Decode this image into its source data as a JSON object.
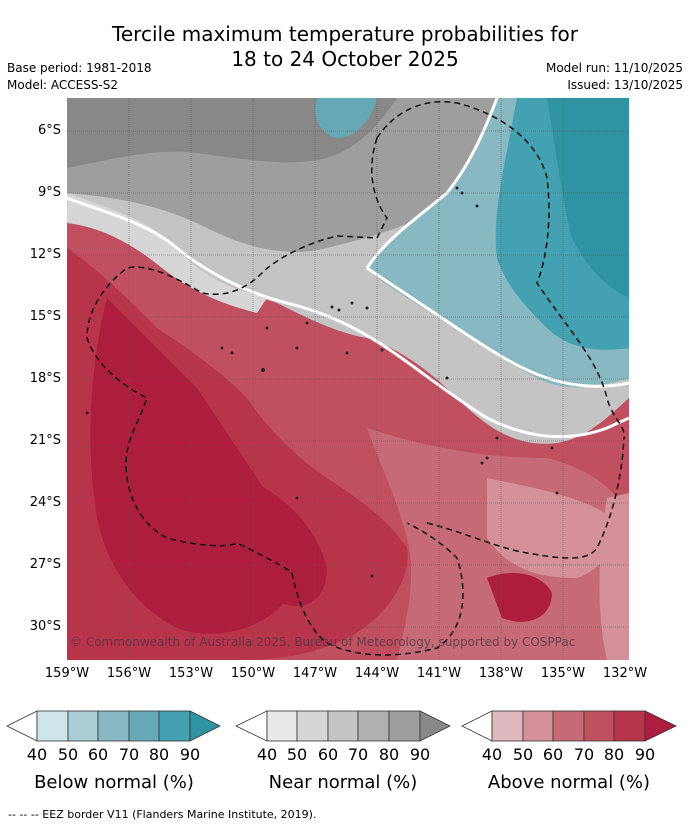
{
  "title": {
    "line1": "Tercile maximum temperature probabilities for",
    "line2": "18 to 24 October 2025"
  },
  "meta": {
    "base_period": "Base period: 1981-2018",
    "model": "Model: ACCESS-S2",
    "model_run": "Model run: 11/10/2025",
    "issued": "Issued: 13/10/2025"
  },
  "map": {
    "copyright": "© Commonwealth of Australia 2025, Bureau of Meteorology, supported by COSPPac",
    "lat_labels": [
      "6°S",
      "9°S",
      "12°S",
      "15°S",
      "18°S",
      "21°S",
      "24°S",
      "27°S",
      "30°S"
    ],
    "lon_labels": [
      "159°W",
      "156°W",
      "153°W",
      "150°W",
      "147°W",
      "144°W",
      "141°W",
      "138°W",
      "135°W",
      "132°W"
    ],
    "colors": {
      "above": [
        "#e0b8bf",
        "#d4919a",
        "#c66a77",
        "#c0505f",
        "#b8344b",
        "#ad1e3e"
      ],
      "near": [
        "#e9e9e9",
        "#d6d6d6",
        "#c4c4c4",
        "#b0b0b0",
        "#9e9e9e",
        "#888888"
      ],
      "below": [
        "#cde4e8",
        "#a9cdd4",
        "#88b8c1",
        "#66a8b5",
        "#44a1b1",
        "#2f93a2"
      ]
    }
  },
  "colorbars": {
    "ticks": [
      "40",
      "50",
      "60",
      "70",
      "80",
      "90"
    ],
    "below_label": "Below normal (%)",
    "near_label": "Near normal (%)",
    "above_label": "Above normal (%)"
  },
  "eez_legend": "--  --  -- EEZ border V11 (Flanders Marine Institute, 2019)."
}
